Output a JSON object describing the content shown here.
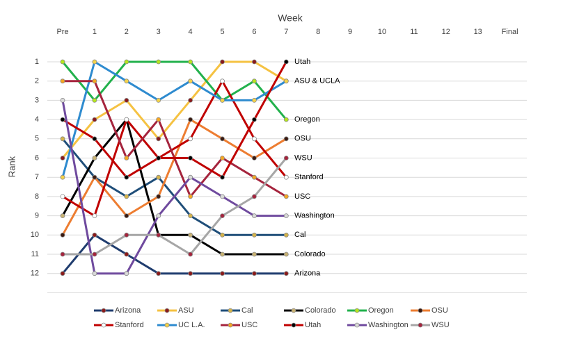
{
  "chart_data": {
    "type": "line",
    "title": "Week",
    "y_label": "Rank",
    "categories": [
      "Pre",
      "1",
      "2",
      "3",
      "4",
      "5",
      "6",
      "7",
      "8",
      "9",
      "10",
      "11",
      "12",
      "13",
      "Final"
    ],
    "ylim": [
      0,
      13
    ],
    "y_reversed": true,
    "yticks": [
      1,
      2,
      3,
      4,
      5,
      6,
      7,
      8,
      9,
      10,
      11,
      12
    ],
    "grid": true,
    "legend": "bottom",
    "series": [
      {
        "name": "Arizona",
        "color": "#1f3c6e",
        "marker_color": "#8b1a1a",
        "values": [
          12,
          10,
          11,
          12,
          12,
          12,
          12,
          12,
          null,
          null,
          null,
          null,
          null,
          null,
          null
        ]
      },
      {
        "name": "ASU",
        "color": "#f5c242",
        "marker_color": "#8b1a1a",
        "values": [
          6,
          4,
          3,
          5,
          3,
          1,
          1,
          2,
          null,
          null,
          null,
          null,
          null,
          null,
          null
        ]
      },
      {
        "name": "Cal",
        "color": "#1f4e79",
        "marker_color": "#d4b44a",
        "values": [
          5,
          7,
          8,
          7,
          9,
          10,
          10,
          10,
          null,
          null,
          null,
          null,
          null,
          null,
          null
        ]
      },
      {
        "name": "Colorado",
        "color": "#000000",
        "marker_color": "#c8b273",
        "values": [
          9,
          6,
          4,
          10,
          10,
          11,
          11,
          11,
          null,
          null,
          null,
          null,
          null,
          null,
          null
        ]
      },
      {
        "name": "Oregon",
        "color": "#22b14c",
        "marker_color": "#b5e61d",
        "values": [
          1,
          3,
          1,
          1,
          1,
          3,
          2,
          4,
          null,
          null,
          null,
          null,
          null,
          null,
          null
        ]
      },
      {
        "name": "OSU",
        "color": "#ed7d31",
        "marker_color": "#3a1a10",
        "values": [
          10,
          7,
          9,
          8,
          4,
          5,
          6,
          5,
          null,
          null,
          null,
          null,
          null,
          null,
          null
        ]
      },
      {
        "name": "Stanford",
        "color": "#c00000",
        "marker_color": "#ffffff",
        "values": [
          8,
          9,
          4,
          6,
          5,
          2,
          5,
          7,
          null,
          null,
          null,
          null,
          null,
          null,
          null
        ]
      },
      {
        "name": "UC L.A.",
        "color": "#2e8bcf",
        "marker_color": "#f3d34a",
        "values": [
          7,
          1,
          2,
          3,
          2,
          3,
          3,
          2,
          null,
          null,
          null,
          null,
          null,
          null,
          null
        ]
      },
      {
        "name": "USC",
        "color": "#a5243d",
        "marker_color": "#f5a623",
        "values": [
          2,
          2,
          6,
          4,
          8,
          6,
          7,
          8,
          null,
          null,
          null,
          null,
          null,
          null,
          null
        ]
      },
      {
        "name": "Utah",
        "color": "#c00000",
        "marker_color": "#000000",
        "values": [
          4,
          5,
          7,
          6,
          6,
          7,
          4,
          1,
          null,
          null,
          null,
          null,
          null,
          null,
          null
        ]
      },
      {
        "name": "Washington",
        "color": "#6f4a9e",
        "marker_color": "#d9d9d9",
        "values": [
          3,
          12,
          12,
          9,
          7,
          8,
          9,
          9,
          null,
          null,
          null,
          null,
          null,
          null,
          null
        ]
      },
      {
        "name": "WSU",
        "color": "#a6a6a6",
        "marker_color": "#a5243d",
        "values": [
          11,
          11,
          10,
          10,
          11,
          9,
          8,
          6,
          null,
          null,
          null,
          null,
          null,
          null,
          null
        ]
      }
    ],
    "annotations": [
      {
        "text": "Utah",
        "y": 1
      },
      {
        "text": "ASU & UCLA",
        "y": 2
      },
      {
        "text": "Oregon",
        "y": 4
      },
      {
        "text": "OSU",
        "y": 5
      },
      {
        "text": "WSU",
        "y": 6
      },
      {
        "text": "Stanford",
        "y": 7
      },
      {
        "text": "USC",
        "y": 8
      },
      {
        "text": "Washington",
        "y": 9
      },
      {
        "text": "Cal",
        "y": 10
      },
      {
        "text": "Colorado",
        "y": 11
      },
      {
        "text": "Arizona",
        "y": 12
      }
    ]
  }
}
